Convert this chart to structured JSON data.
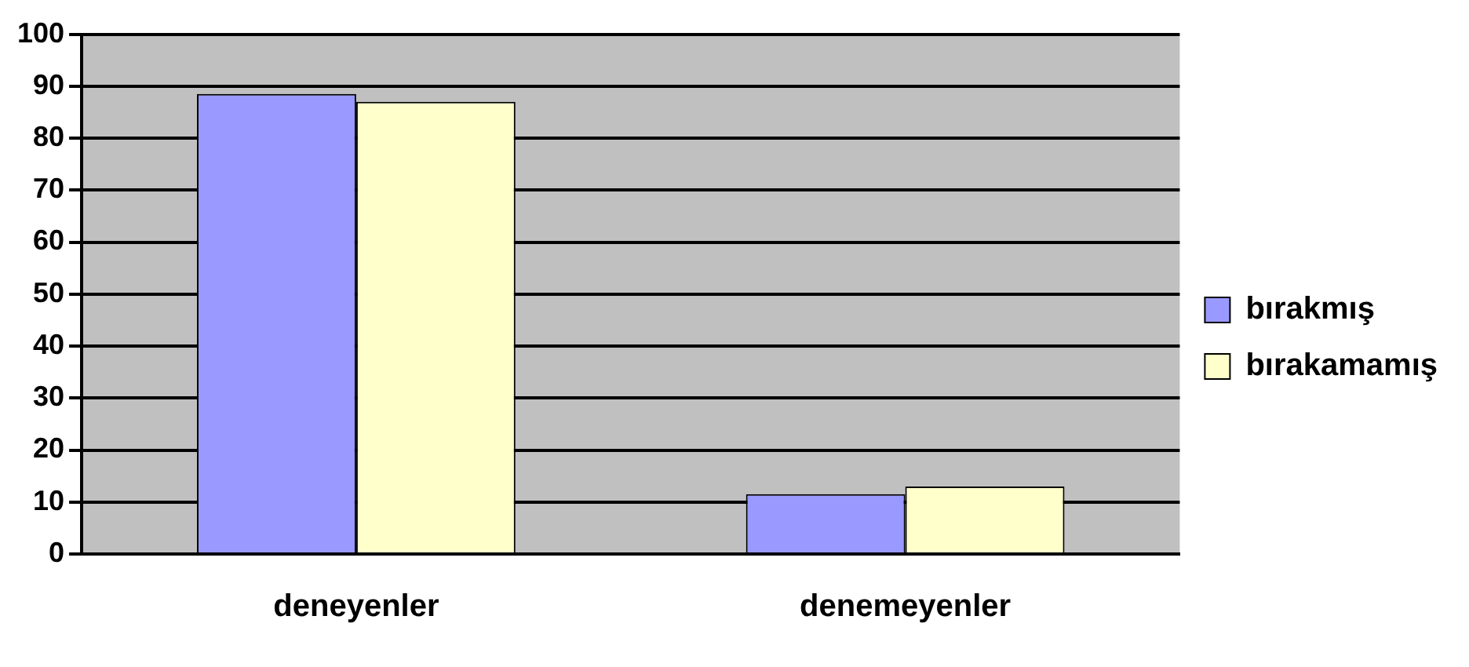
{
  "chart_data": {
    "type": "bar",
    "categories": [
      "deneyenler",
      "denemeyenler"
    ],
    "series": [
      {
        "name": "bırakmış",
        "color": "#9999ff",
        "values": [
          88.5,
          11.5
        ]
      },
      {
        "name": "bırakamamış",
        "color": "#ffffcc",
        "values": [
          87,
          13
        ]
      }
    ],
    "ylim": [
      0,
      100
    ],
    "yticks": [
      0,
      10,
      20,
      30,
      40,
      50,
      60,
      70,
      80,
      90,
      100
    ],
    "grid": "y",
    "legend": "right"
  }
}
